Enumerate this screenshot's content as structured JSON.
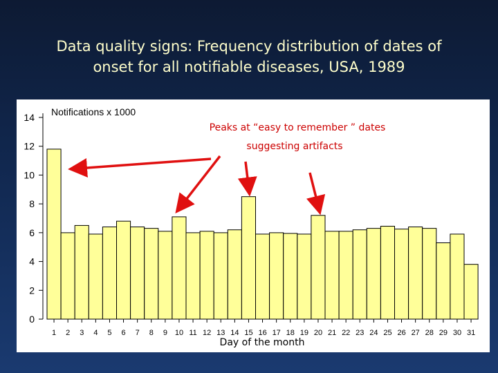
{
  "title_line1": "Data quality signs: Frequency distribution of dates of",
  "title_line2": "onset for all notifiable diseases, USA, 1989",
  "colors": {
    "background": "#112850",
    "title_text": "#ffffcc",
    "bar_fill": "#ffff99",
    "bar_stroke": "#000000",
    "annotation_text": "#cc0000",
    "arrow": "#e01010"
  },
  "chart_data": {
    "type": "bar",
    "title": "",
    "ylabel": "Notifications x 1000",
    "xlabel": "Day of the month",
    "ylim": [
      0,
      14
    ],
    "yticks": [
      0,
      2,
      4,
      6,
      8,
      10,
      12,
      14
    ],
    "categories": [
      "1",
      "2",
      "3",
      "4",
      "5",
      "6",
      "7",
      "8",
      "9",
      "10",
      "11",
      "12",
      "13",
      "14",
      "15",
      "16",
      "17",
      "18",
      "19",
      "20",
      "21",
      "22",
      "23",
      "24",
      "25",
      "26",
      "27",
      "28",
      "29",
      "30",
      "31"
    ],
    "values": [
      11.8,
      6.0,
      6.5,
      5.9,
      6.4,
      6.8,
      6.4,
      6.3,
      6.1,
      7.1,
      6.0,
      6.1,
      6.0,
      6.2,
      8.5,
      5.9,
      6.0,
      5.95,
      5.9,
      7.2,
      6.1,
      6.1,
      6.2,
      6.3,
      6.45,
      6.25,
      6.4,
      6.3,
      5.3,
      5.9,
      3.8
    ],
    "grid": false,
    "legend": "none",
    "annotation": {
      "line1": "Peaks at “easy to remember ” dates",
      "line2": "suggesting artifacts",
      "arrow_targets": [
        1,
        10,
        15,
        20
      ]
    }
  }
}
